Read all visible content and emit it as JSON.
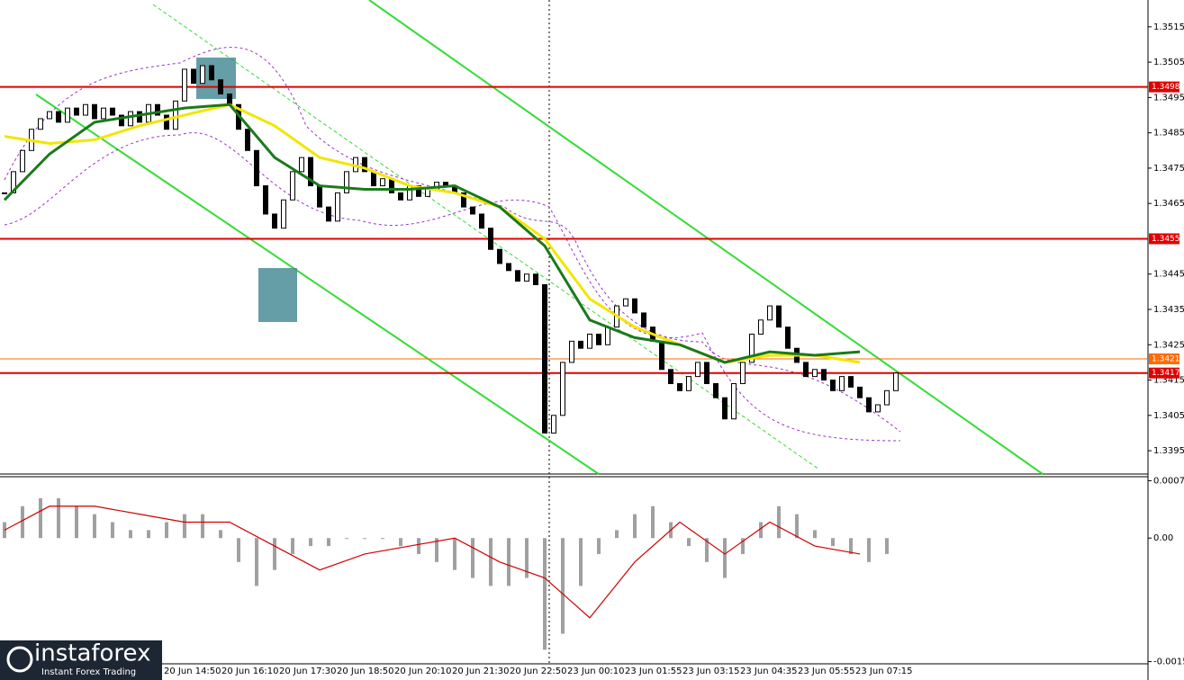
{
  "chart_data": {
    "type": "candlestick",
    "ylim": [
      1.33884,
      1.35226
    ],
    "yticks": [
      1.3515,
      1.3505,
      1.3495,
      1.3485,
      1.3475,
      1.3465,
      1.3445,
      1.3435,
      1.3425,
      1.3415,
      1.3405,
      1.3395
    ],
    "closes": [
      1.3468,
      1.3474,
      1.348,
      1.3486,
      1.3489,
      1.3491,
      1.3488,
      1.3492,
      1.349,
      1.3493,
      1.3489,
      1.3492,
      1.349,
      1.3487,
      1.3491,
      1.3488,
      1.3493,
      1.349,
      1.3486,
      1.3494,
      1.3503,
      1.3499,
      1.3504,
      1.35,
      1.3496,
      1.3493,
      1.3486,
      1.348,
      1.347,
      1.3462,
      1.3458,
      1.3466,
      1.3474,
      1.3478,
      1.347,
      1.3464,
      1.346,
      1.3468,
      1.3474,
      1.3478,
      1.3474,
      1.347,
      1.3472,
      1.3468,
      1.3466,
      1.347,
      1.3467,
      1.3469,
      1.3471,
      1.347,
      1.3468,
      1.3464,
      1.3462,
      1.3458,
      1.3452,
      1.3448,
      1.3446,
      1.3443,
      1.3445,
      1.3442,
      1.34,
      1.3405,
      1.342,
      1.3426,
      1.3424,
      1.3428,
      1.3425,
      1.343,
      1.3436,
      1.3438,
      1.3434,
      1.343,
      1.3426,
      1.3418,
      1.3414,
      1.3412,
      1.3416,
      1.342,
      1.3414,
      1.341,
      1.3404,
      1.3414,
      1.342,
      1.3428,
      1.3432,
      1.3436,
      1.343,
      1.3424,
      1.342,
      1.3416,
      1.3418,
      1.3415,
      1.3412,
      1.3416,
      1.3413,
      1.341,
      1.3406,
      1.3408,
      1.3412,
      1.3417
    ],
    "ma_fast": {
      "color": "#1a7a1a",
      "values": [
        1.3466,
        1.3479,
        1.3488,
        1.349,
        1.3492,
        1.3493,
        1.3478,
        1.347,
        1.3469,
        1.3469,
        1.347,
        1.3464,
        1.3453,
        1.3432,
        1.3427,
        1.3425,
        1.342,
        1.3423,
        1.3422,
        1.3423
      ]
    },
    "ma_slow": {
      "color": "#f2e600",
      "values": [
        1.3484,
        1.3482,
        1.3483,
        1.3487,
        1.349,
        1.3493,
        1.3487,
        1.3478,
        1.3475,
        1.347,
        1.3468,
        1.3464,
        1.3455,
        1.3438,
        1.343,
        1.3425,
        1.342,
        1.3422,
        1.3422,
        1.342
      ]
    },
    "levels": [
      1.3498,
      1.3455,
      1.3421,
      1.3417
    ],
    "level_colors": [
      "#e00000",
      "#e00000",
      "#ff6a00",
      "#e00000"
    ],
    "time_labels": [
      "20 Jun 14:50",
      "20 Jun 16:10",
      "20 Jun 17:30",
      "20 Jun 18:50",
      "20 Jun 20:10",
      "20 Jun 21:30",
      "20 Jun 22:50",
      "23 Jun 00:10",
      "23 Jun 01:55",
      "23 Jun 03:15",
      "23 Jun 04:35",
      "23 Jun 05:55",
      "23 Jun 07:15"
    ],
    "macd": {
      "ylim": [
        -0.0016,
        0.00077
      ],
      "yticks": [
        0.00072,
        {
          "value": 0,
          "label": "0.00"
        },
        -0.00155
      ],
      "histogram": [
        0.0002,
        0.0004,
        0.0005,
        0.0005,
        0.0004,
        0.0003,
        0.0002,
        0.0001,
        0.0001,
        0.0002,
        0.0003,
        0.0003,
        0.0001,
        -0.0003,
        -0.0006,
        -0.0004,
        -0.0002,
        -0.0001,
        -0.0001,
        0,
        0,
        0,
        -0.0001,
        -0.0002,
        -0.0003,
        -0.0004,
        -0.0005,
        -0.0006,
        -0.0006,
        -0.0005,
        -0.0014,
        -0.0012,
        -0.0006,
        -0.0002,
        0.0001,
        0.0003,
        0.0004,
        0.0002,
        -0.0001,
        -0.0003,
        -0.0005,
        -0.0002,
        0.0002,
        0.0004,
        0.0003,
        0.0001,
        -0.0001,
        -0.0002,
        -0.0003,
        -0.0002
      ],
      "signal": [
        0.0001,
        0.0004,
        0.0004,
        0.0003,
        0.0002,
        0.0002,
        -0.0001,
        -0.0004,
        -0.0002,
        -0.0001,
        0,
        -0.0003,
        -0.0005,
        -0.001,
        -0.0003,
        0.0002,
        -0.0002,
        0.0002,
        -0.0001,
        -0.0002
      ],
      "hist_color": "#a0a0a0",
      "signal_color": "#d00000"
    }
  },
  "branding": {
    "name": "instaforex",
    "tagline": "Instant Forex Trading"
  }
}
